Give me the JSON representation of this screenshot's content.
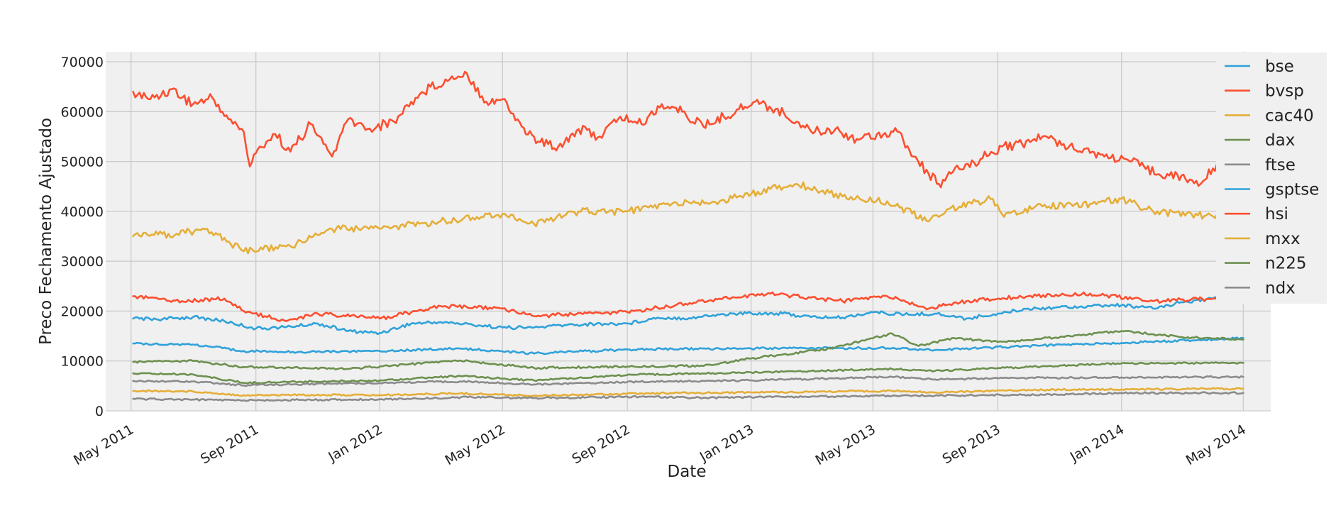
{
  "chart_data": {
    "type": "line",
    "title": "",
    "xlabel": "Date",
    "ylabel": "Preco Fechamento Ajustado",
    "xlim": [
      "2011-04-06",
      "2014-05-28"
    ],
    "ylim": [
      0,
      72000
    ],
    "x_ticks": [
      "2011-05-01",
      "2011-09-01",
      "2012-01-01",
      "2012-05-01",
      "2012-09-01",
      "2013-01-01",
      "2013-05-01",
      "2013-09-01",
      "2014-01-01",
      "2014-05-01"
    ],
    "x_tick_labels": [
      "May 2011",
      "Sep 2011",
      "Jan 2012",
      "May 2012",
      "Sep 2012",
      "Jan 2013",
      "May 2013",
      "Sep 2013",
      "Jan 2014",
      "May 2014"
    ],
    "y_ticks": [
      0,
      10000,
      20000,
      30000,
      40000,
      50000,
      60000,
      70000
    ],
    "y_tick_labels": [
      "0",
      "10000",
      "20000",
      "30000",
      "40000",
      "50000",
      "60000",
      "70000"
    ],
    "grid": true,
    "legend_position": "right",
    "series": [
      {
        "name": "bse",
        "color": "#30a2da",
        "points": [
          [
            "2011-05-03",
            18500
          ],
          [
            "2011-06-01",
            18400
          ],
          [
            "2011-07-01",
            18800
          ],
          [
            "2011-08-01",
            18000
          ],
          [
            "2011-09-01",
            16500
          ],
          [
            "2011-10-01",
            16800
          ],
          [
            "2011-11-01",
            17500
          ],
          [
            "2011-12-01",
            16000
          ],
          [
            "2012-01-01",
            15600
          ],
          [
            "2012-02-01",
            17500
          ],
          [
            "2012-03-01",
            17800
          ],
          [
            "2012-04-01",
            17300
          ],
          [
            "2012-05-01",
            16700
          ],
          [
            "2012-06-01",
            16700
          ],
          [
            "2012-07-01",
            17200
          ],
          [
            "2012-08-01",
            17400
          ],
          [
            "2012-09-01",
            17500
          ],
          [
            "2012-10-01",
            18700
          ],
          [
            "2012-11-01",
            18600
          ],
          [
            "2012-12-01",
            19300
          ],
          [
            "2013-01-01",
            19600
          ],
          [
            "2013-02-01",
            19500
          ],
          [
            "2013-03-01",
            18800
          ],
          [
            "2013-04-01",
            18700
          ],
          [
            "2013-05-01",
            19800
          ],
          [
            "2013-06-01",
            19300
          ],
          [
            "2013-07-01",
            19500
          ],
          [
            "2013-08-01",
            18500
          ],
          [
            "2013-09-01",
            19500
          ],
          [
            "2013-10-01",
            20500
          ],
          [
            "2013-11-01",
            20800
          ],
          [
            "2013-12-01",
            21000
          ],
          [
            "2014-01-01",
            21200
          ],
          [
            "2014-02-01",
            20500
          ],
          [
            "2014-03-01",
            21800
          ],
          [
            "2014-04-01",
            22500
          ],
          [
            "2014-05-01",
            22600
          ]
        ]
      },
      {
        "name": "bvsp",
        "color": "#fc4f30",
        "points": [
          [
            "2011-05-03",
            64000
          ],
          [
            "2011-05-20",
            62500
          ],
          [
            "2011-06-10",
            64500
          ],
          [
            "2011-07-01",
            61500
          ],
          [
            "2011-07-20",
            62800
          ],
          [
            "2011-08-05",
            58500
          ],
          [
            "2011-08-20",
            56000
          ],
          [
            "2011-08-26",
            49000
          ],
          [
            "2011-09-05",
            53000
          ],
          [
            "2011-09-20",
            55500
          ],
          [
            "2011-10-05",
            52000
          ],
          [
            "2011-10-25",
            57500
          ],
          [
            "2011-11-15",
            51000
          ],
          [
            "2011-12-01",
            58500
          ],
          [
            "2011-12-20",
            56500
          ],
          [
            "2012-01-15",
            58000
          ],
          [
            "2012-02-01",
            62000
          ],
          [
            "2012-02-20",
            65000
          ],
          [
            "2012-03-10",
            66500
          ],
          [
            "2012-03-25",
            68000
          ],
          [
            "2012-04-15",
            62000
          ],
          [
            "2012-05-01",
            62500
          ],
          [
            "2012-05-20",
            57000
          ],
          [
            "2012-06-05",
            54000
          ],
          [
            "2012-06-25",
            53000
          ],
          [
            "2012-07-15",
            56500
          ],
          [
            "2012-08-05",
            55000
          ],
          [
            "2012-08-25",
            59000
          ],
          [
            "2012-09-15",
            57500
          ],
          [
            "2012-10-05",
            61500
          ],
          [
            "2012-10-25",
            60000
          ],
          [
            "2012-11-15",
            57000
          ],
          [
            "2012-12-05",
            59000
          ],
          [
            "2012-12-20",
            60500
          ],
          [
            "2013-01-05",
            62000
          ],
          [
            "2013-01-25",
            60500
          ],
          [
            "2013-02-15",
            58000
          ],
          [
            "2013-03-05",
            56000
          ],
          [
            "2013-03-25",
            56500
          ],
          [
            "2013-04-15",
            54500
          ],
          [
            "2013-05-05",
            55500
          ],
          [
            "2013-05-25",
            56000
          ],
          [
            "2013-06-10",
            51000
          ],
          [
            "2013-06-25",
            47500
          ],
          [
            "2013-07-05",
            45500
          ],
          [
            "2013-07-25",
            48500
          ],
          [
            "2013-08-15",
            50500
          ],
          [
            "2013-09-05",
            53000
          ],
          [
            "2013-09-25",
            53500
          ],
          [
            "2013-10-15",
            55000
          ],
          [
            "2013-11-05",
            53500
          ],
          [
            "2013-11-25",
            52500
          ],
          [
            "2013-12-15",
            51000
          ],
          [
            "2014-01-05",
            50500
          ],
          [
            "2014-01-25",
            48500
          ],
          [
            "2014-02-15",
            47500
          ],
          [
            "2014-03-05",
            46500
          ],
          [
            "2014-03-20",
            45500
          ],
          [
            "2014-04-05",
            49500
          ],
          [
            "2014-04-20",
            51500
          ],
          [
            "2014-05-01",
            52000
          ]
        ]
      },
      {
        "name": "cac40",
        "color": "#e5ae38",
        "points": [
          [
            "2011-05-03",
            4000
          ],
          [
            "2011-07-01",
            3900
          ],
          [
            "2011-08-20",
            3100
          ],
          [
            "2011-10-01",
            3200
          ],
          [
            "2012-01-01",
            3150
          ],
          [
            "2012-03-20",
            3500
          ],
          [
            "2012-06-01",
            3050
          ],
          [
            "2012-09-01",
            3450
          ],
          [
            "2013-01-01",
            3700
          ],
          [
            "2013-05-20",
            4000
          ],
          [
            "2013-07-01",
            3700
          ],
          [
            "2013-10-01",
            4200
          ],
          [
            "2014-01-01",
            4300
          ],
          [
            "2014-05-01",
            4450
          ]
        ]
      },
      {
        "name": "dax",
        "color": "#6d904f",
        "points": [
          [
            "2011-05-03",
            7500
          ],
          [
            "2011-07-01",
            7300
          ],
          [
            "2011-08-20",
            5600
          ],
          [
            "2011-10-01",
            5800
          ],
          [
            "2012-01-01",
            6100
          ],
          [
            "2012-03-20",
            7000
          ],
          [
            "2012-06-01",
            6100
          ],
          [
            "2012-09-01",
            7200
          ],
          [
            "2013-01-01",
            7700
          ],
          [
            "2013-05-20",
            8400
          ],
          [
            "2013-07-01",
            8000
          ],
          [
            "2013-10-01",
            8800
          ],
          [
            "2014-01-01",
            9500
          ],
          [
            "2014-05-01",
            9600
          ]
        ]
      },
      {
        "name": "ftse",
        "color": "#8b8b8b",
        "points": [
          [
            "2011-05-03",
            6000
          ],
          [
            "2011-07-01",
            5900
          ],
          [
            "2011-08-20",
            5100
          ],
          [
            "2011-10-01",
            5300
          ],
          [
            "2012-01-01",
            5600
          ],
          [
            "2012-03-20",
            5900
          ],
          [
            "2012-06-01",
            5300
          ],
          [
            "2012-09-01",
            5800
          ],
          [
            "2013-01-01",
            6100
          ],
          [
            "2013-05-20",
            6800
          ],
          [
            "2013-07-01",
            6300
          ],
          [
            "2013-10-01",
            6600
          ],
          [
            "2014-01-01",
            6700
          ],
          [
            "2014-05-01",
            6800
          ]
        ]
      },
      {
        "name": "gsptse",
        "color": "#30a2da",
        "points": [
          [
            "2011-05-03",
            13500
          ],
          [
            "2011-07-01",
            13300
          ],
          [
            "2011-08-20",
            12000
          ],
          [
            "2011-10-01",
            11800
          ],
          [
            "2012-01-01",
            12000
          ],
          [
            "2012-03-20",
            12500
          ],
          [
            "2012-06-01",
            11500
          ],
          [
            "2012-09-01",
            12300
          ],
          [
            "2013-01-01",
            12500
          ],
          [
            "2013-05-20",
            12600
          ],
          [
            "2013-07-01",
            12200
          ],
          [
            "2013-10-01",
            13000
          ],
          [
            "2014-01-01",
            13600
          ],
          [
            "2014-05-01",
            14600
          ]
        ]
      },
      {
        "name": "hsi",
        "color": "#fc4f30",
        "points": [
          [
            "2011-05-03",
            23000
          ],
          [
            "2011-06-20",
            22000
          ],
          [
            "2011-08-01",
            22500
          ],
          [
            "2011-08-20",
            20000
          ],
          [
            "2011-10-01",
            18000
          ],
          [
            "2011-11-01",
            19500
          ],
          [
            "2012-01-01",
            18500
          ],
          [
            "2012-03-01",
            21000
          ],
          [
            "2012-05-01",
            20500
          ],
          [
            "2012-06-01",
            19000
          ],
          [
            "2012-09-01",
            19800
          ],
          [
            "2012-12-01",
            22500
          ],
          [
            "2013-01-20",
            23500
          ],
          [
            "2013-04-01",
            22000
          ],
          [
            "2013-05-15",
            23000
          ],
          [
            "2013-06-25",
            20500
          ],
          [
            "2013-08-01",
            22000
          ],
          [
            "2013-10-01",
            23000
          ],
          [
            "2013-12-01",
            23500
          ],
          [
            "2014-02-01",
            22000
          ],
          [
            "2014-04-01",
            22500
          ],
          [
            "2014-05-01",
            22500
          ]
        ]
      },
      {
        "name": "mxx",
        "color": "#e5ae38",
        "points": [
          [
            "2011-05-03",
            35000
          ],
          [
            "2011-06-15",
            35500
          ],
          [
            "2011-07-15",
            36500
          ],
          [
            "2011-08-20",
            32000
          ],
          [
            "2011-10-05",
            33000
          ],
          [
            "2011-11-15",
            36500
          ],
          [
            "2012-01-01",
            36500
          ],
          [
            "2012-03-01",
            38000
          ],
          [
            "2012-05-01",
            39500
          ],
          [
            "2012-06-01",
            37500
          ],
          [
            "2012-07-15",
            40000
          ],
          [
            "2012-09-01",
            40000
          ],
          [
            "2012-10-15",
            41500
          ],
          [
            "2012-12-01",
            42000
          ],
          [
            "2013-01-20",
            44500
          ],
          [
            "2013-02-15",
            45500
          ],
          [
            "2013-04-01",
            43000
          ],
          [
            "2013-05-15",
            42000
          ],
          [
            "2013-06-25",
            38000
          ],
          [
            "2013-07-15",
            40500
          ],
          [
            "2013-08-25",
            42500
          ],
          [
            "2013-09-05",
            39500
          ],
          [
            "2013-10-15",
            41000
          ],
          [
            "2013-12-01",
            41500
          ],
          [
            "2014-01-01",
            42500
          ],
          [
            "2014-02-01",
            40000
          ],
          [
            "2014-04-01",
            39000
          ],
          [
            "2014-05-01",
            40500
          ]
        ]
      },
      {
        "name": "n225",
        "color": "#6d904f",
        "points": [
          [
            "2011-05-03",
            9800
          ],
          [
            "2011-07-01",
            10000
          ],
          [
            "2011-08-20",
            8800
          ],
          [
            "2011-10-01",
            8700
          ],
          [
            "2011-12-01",
            8400
          ],
          [
            "2012-03-20",
            10100
          ],
          [
            "2012-06-01",
            8600
          ],
          [
            "2012-09-01",
            8900
          ],
          [
            "2012-11-15",
            9000
          ],
          [
            "2013-01-01",
            10500
          ],
          [
            "2013-03-20",
            12500
          ],
          [
            "2013-05-20",
            15500
          ],
          [
            "2013-06-15",
            13000
          ],
          [
            "2013-07-20",
            14600
          ],
          [
            "2013-09-01",
            13800
          ],
          [
            "2013-10-01",
            14200
          ],
          [
            "2014-01-01",
            16000
          ],
          [
            "2014-03-01",
            14800
          ],
          [
            "2014-05-01",
            14300
          ]
        ]
      },
      {
        "name": "ndx",
        "color": "#8b8b8b",
        "points": [
          [
            "2011-05-03",
            2400
          ],
          [
            "2011-08-20",
            2100
          ],
          [
            "2012-01-01",
            2300
          ],
          [
            "2012-04-01",
            2750
          ],
          [
            "2012-06-01",
            2550
          ],
          [
            "2012-09-15",
            2850
          ],
          [
            "2012-11-15",
            2600
          ],
          [
            "2013-01-01",
            2750
          ],
          [
            "2013-05-20",
            3000
          ],
          [
            "2013-10-01",
            3200
          ],
          [
            "2014-01-01",
            3550
          ],
          [
            "2014-05-01",
            3600
          ]
        ]
      }
    ]
  }
}
